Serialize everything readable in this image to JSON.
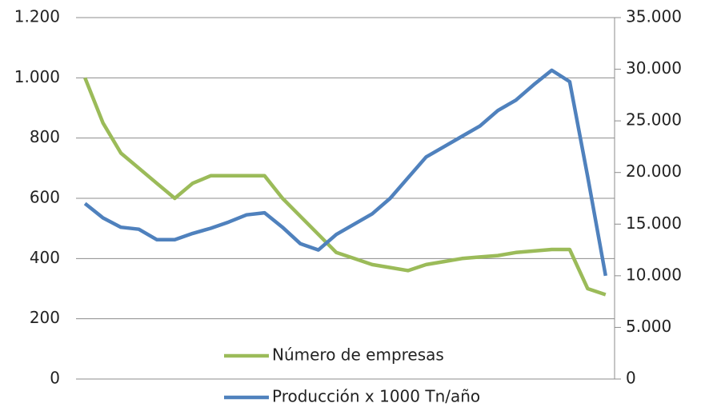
{
  "chart_data": {
    "type": "line",
    "categories": [
      null,
      null,
      null,
      null,
      null,
      null,
      null,
      null,
      null,
      null,
      null,
      null,
      null,
      null,
      null,
      null,
      null,
      null,
      null,
      null,
      null,
      null,
      null,
      null,
      null,
      null,
      null,
      null,
      null,
      null
    ],
    "series": [
      {
        "name": "Número de empresas",
        "color": "#9bbb59",
        "axis": "y",
        "values": [
          1000,
          850,
          750,
          700,
          650,
          600,
          650,
          675,
          675,
          675,
          675,
          600,
          540,
          480,
          420,
          400,
          380,
          370,
          360,
          380,
          390,
          400,
          405,
          410,
          420,
          425,
          430,
          430,
          300,
          280
        ]
      },
      {
        "name": "Producción x 1000 Tn/año",
        "color": "#4f81bd",
        "axis": "y2",
        "values": [
          17000,
          15600,
          14700,
          14500,
          13500,
          13500,
          14100,
          14600,
          15200,
          15900,
          16100,
          14700,
          13100,
          12500,
          14000,
          15000,
          16000,
          17500,
          19500,
          21500,
          22500,
          23500,
          24500,
          26000,
          27000,
          28500,
          29900,
          28800,
          19600,
          10000
        ]
      }
    ],
    "ylim": [
      0,
      1200
    ],
    "yticks": [
      0,
      200,
      400,
      600,
      800,
      {
        "value": 1000,
        "label": "1.000"
      },
      {
        "value": 1200,
        "label": "1.200"
      }
    ],
    "y2lim": [
      0,
      35000
    ],
    "y2ticks": [
      0,
      {
        "value": 5000,
        "label": "5.000"
      },
      {
        "value": 10000,
        "label": "10.000"
      },
      {
        "value": 15000,
        "label": "15.000"
      },
      {
        "value": 20000,
        "label": "20.000"
      },
      {
        "value": 25000,
        "label": "25.000"
      },
      {
        "value": 30000,
        "label": "30.000"
      },
      {
        "value": 35000,
        "label": "35.000"
      }
    ],
    "grid": true,
    "legend": "bottom"
  }
}
